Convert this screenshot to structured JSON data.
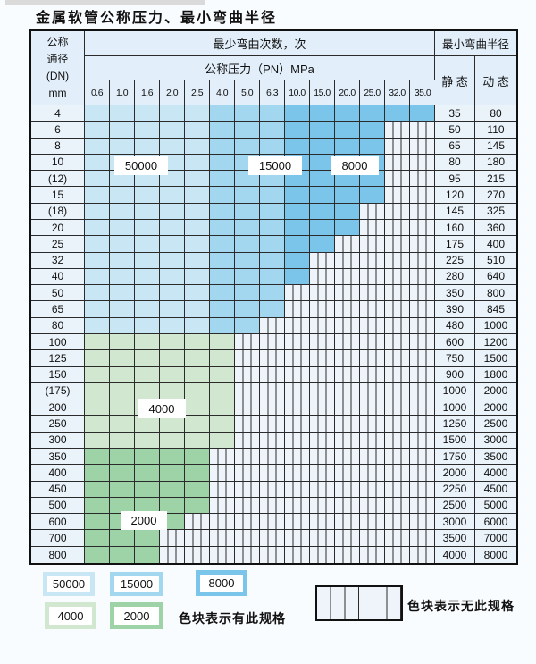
{
  "title": "金属软管公称压力、最小弯曲半径",
  "colors": {
    "blue_50000": "#c9e6f5",
    "blue_15000": "#a3d6ef",
    "blue_8000": "#7cc5ea",
    "green_4000": "#d2e7cf",
    "green_2000": "#9ed3a8",
    "stripe_bg": "#eef4f9",
    "label_col_bg": "#eaf3fa",
    "header_bg": "#e2effa",
    "border": "#2b2b2b"
  },
  "table": {
    "dn_header_lines": [
      "公称",
      "通径",
      "(DN)",
      "mm"
    ],
    "bend_cycles_header": "最少弯曲次数，次",
    "pressure_header": "公称压力（PN）MPa",
    "pressure_columns": [
      "0.6",
      "1.0",
      "1.6",
      "2.0",
      "2.5",
      "4.0",
      "5.0",
      "6.3",
      "10.0",
      "15.0",
      "20.0",
      "25.0",
      "32.0",
      "35.0"
    ],
    "radius_header": "最小弯曲半径",
    "static_header": "静 态",
    "dynamic_header": "动 态",
    "region_labels": {
      "b50000": "50000",
      "b15000": "15000",
      "b8000": "8000",
      "g4000": "4000",
      "g2000": "2000"
    },
    "rows": [
      {
        "dn": "4",
        "static": "35",
        "dynamic": "80",
        "colored": 14,
        "band": "blue"
      },
      {
        "dn": "6",
        "static": "50",
        "dynamic": "110",
        "colored": 12,
        "band": "blue"
      },
      {
        "dn": "8",
        "static": "65",
        "dynamic": "145",
        "colored": 12,
        "band": "blue"
      },
      {
        "dn": "10",
        "static": "80",
        "dynamic": "180",
        "colored": 12,
        "band": "blue"
      },
      {
        "dn": "(12)",
        "static": "95",
        "dynamic": "215",
        "colored": 12,
        "band": "blue"
      },
      {
        "dn": "15",
        "static": "120",
        "dynamic": "270",
        "colored": 12,
        "band": "blue"
      },
      {
        "dn": "(18)",
        "static": "145",
        "dynamic": "325",
        "colored": 11,
        "band": "blue"
      },
      {
        "dn": "20",
        "static": "160",
        "dynamic": "360",
        "colored": 11,
        "band": "blue"
      },
      {
        "dn": "25",
        "static": "175",
        "dynamic": "400",
        "colored": 10,
        "band": "blue"
      },
      {
        "dn": "32",
        "static": "225",
        "dynamic": "510",
        "colored": 9,
        "band": "blue"
      },
      {
        "dn": "40",
        "static": "280",
        "dynamic": "640",
        "colored": 9,
        "band": "blue"
      },
      {
        "dn": "50",
        "static": "350",
        "dynamic": "800",
        "colored": 8,
        "band": "blue"
      },
      {
        "dn": "65",
        "static": "390",
        "dynamic": "845",
        "colored": 8,
        "band": "blue"
      },
      {
        "dn": "80",
        "static": "480",
        "dynamic": "1000",
        "colored": 7,
        "band": "blue"
      },
      {
        "dn": "100",
        "static": "600",
        "dynamic": "1200",
        "colored": 6,
        "band": "g1"
      },
      {
        "dn": "125",
        "static": "750",
        "dynamic": "1500",
        "colored": 6,
        "band": "g1"
      },
      {
        "dn": "150",
        "static": "900",
        "dynamic": "1800",
        "colored": 6,
        "band": "g1"
      },
      {
        "dn": "(175)",
        "static": "1000",
        "dynamic": "2000",
        "colored": 6,
        "band": "g1"
      },
      {
        "dn": "200",
        "static": "1000",
        "dynamic": "2000",
        "colored": 6,
        "band": "g1"
      },
      {
        "dn": "250",
        "static": "1250",
        "dynamic": "2500",
        "colored": 6,
        "band": "g1"
      },
      {
        "dn": "300",
        "static": "1500",
        "dynamic": "3000",
        "colored": 6,
        "band": "g1"
      },
      {
        "dn": "350",
        "static": "1750",
        "dynamic": "3500",
        "colored": 5,
        "band": "g2"
      },
      {
        "dn": "400",
        "static": "2000",
        "dynamic": "4000",
        "colored": 5,
        "band": "g2"
      },
      {
        "dn": "450",
        "static": "2250",
        "dynamic": "4500",
        "colored": 5,
        "band": "g2"
      },
      {
        "dn": "500",
        "static": "2500",
        "dynamic": "5000",
        "colored": 5,
        "band": "g2"
      },
      {
        "dn": "600",
        "static": "3000",
        "dynamic": "6000",
        "colored": 4,
        "band": "g2"
      },
      {
        "dn": "700",
        "static": "3500",
        "dynamic": "7000",
        "colored": 3,
        "band": "g2"
      },
      {
        "dn": "800",
        "static": "4000",
        "dynamic": "8000",
        "colored": 3,
        "band": "g2"
      }
    ]
  },
  "legend": {
    "items": [
      {
        "label": "50000",
        "color": "blue_50000"
      },
      {
        "label": "15000",
        "color": "blue_15000"
      },
      {
        "label": "8000",
        "color": "blue_8000"
      },
      {
        "label": "4000",
        "color": "green_4000"
      },
      {
        "label": "2000",
        "color": "green_2000"
      }
    ],
    "has_spec_note": "色块表示有此规格",
    "no_spec_note": "色块表示无此规格"
  }
}
